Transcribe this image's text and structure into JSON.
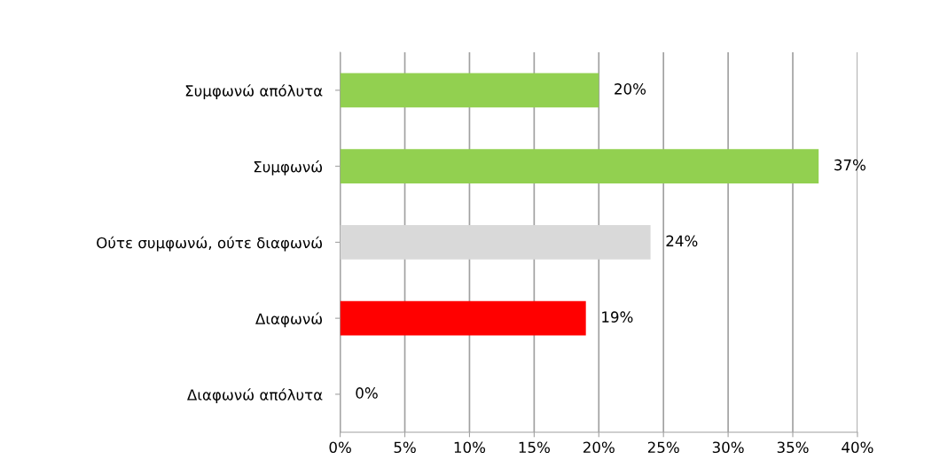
{
  "chart_data": {
    "type": "bar",
    "orientation": "horizontal",
    "categories": [
      "Συμφωνώ απόλυτα",
      "Συμφωνώ",
      "Ούτε συμφωνώ, ούτε διαφωνώ",
      "Διαφωνώ",
      "Διαφωνώ απόλυτα"
    ],
    "values": [
      20,
      37,
      24,
      19,
      0
    ],
    "colors": [
      "#92d050",
      "#92d050",
      "#d9d9d9",
      "#ff0000",
      "#c00000"
    ],
    "value_labels": [
      "20%",
      "37%",
      "24%",
      "19%",
      "0%"
    ],
    "xlim": [
      0,
      40
    ],
    "xticks": [
      {
        "value": 0,
        "label": "0%"
      },
      {
        "value": 5,
        "label": "5%"
      },
      {
        "value": 10,
        "label": "10%"
      },
      {
        "value": 15,
        "label": "15%"
      },
      {
        "value": 20,
        "label": "20%"
      },
      {
        "value": 25,
        "label": "25%"
      },
      {
        "value": 30,
        "label": "30%"
      },
      {
        "value": 35,
        "label": "35%"
      },
      {
        "value": 40,
        "label": "40%"
      }
    ],
    "grid": "x",
    "legend": false
  }
}
